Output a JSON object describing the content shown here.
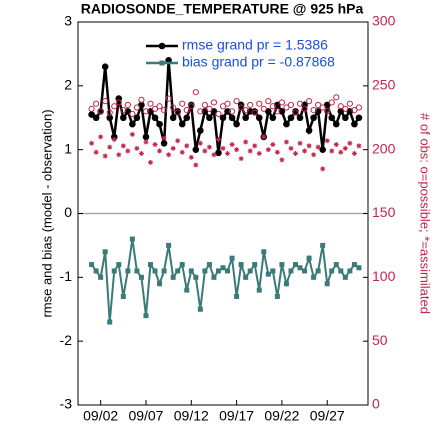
{
  "chart_data": {
    "type": "line",
    "title": "RADIOSONDE_TEMPERATURE @ 925 hPa",
    "y_label": "rmse and bias (model - observation)",
    "y2_label": "# of obs: o=possible; *=assimilated",
    "y2_color": "#c0284a",
    "legend_color": "#1a4fd8",
    "zero_line": true,
    "x": [
      0,
      0.5,
      1,
      1.5,
      2,
      2.5,
      3,
      3.5,
      4,
      4.5,
      5,
      5.5,
      6,
      6.5,
      7,
      7.5,
      8,
      8.5,
      9,
      9.5,
      10,
      10.5,
      11,
      11.5,
      12,
      12.5,
      13,
      13.5,
      14,
      14.5,
      15,
      15.5,
      16,
      16.5,
      17,
      17.5,
      18,
      18.5,
      19,
      19.5,
      20,
      20.5,
      21,
      21.5,
      22,
      22.5,
      23,
      23.5,
      24,
      24.5,
      25,
      25.5,
      26,
      26.5,
      27,
      27.5,
      28,
      28.5,
      29,
      29.5
    ],
    "xlim": [
      -1.5,
      30.5
    ],
    "xticks": [
      {
        "value": 1,
        "label": "09/02"
      },
      {
        "value": 6,
        "label": "09/07"
      },
      {
        "value": 11,
        "label": "09/12"
      },
      {
        "value": 16,
        "label": "09/17"
      },
      {
        "value": 21,
        "label": "09/22"
      },
      {
        "value": 26,
        "label": "09/27"
      }
    ],
    "ylim": [
      -3,
      3
    ],
    "yticks": [
      -3,
      -2,
      -1,
      0,
      1,
      2,
      3
    ],
    "y2lim": [
      0,
      300
    ],
    "y2ticks": [
      0,
      50,
      100,
      150,
      200,
      250,
      300
    ],
    "series": [
      {
        "name": "rmse grand pr = 1.5386",
        "color": "#000000",
        "marker": "circle",
        "values": [
          1.55,
          1.5,
          1.6,
          2.3,
          1.5,
          1.2,
          1.8,
          1.5,
          1.6,
          1.4,
          1.5,
          1.7,
          1.2,
          1.6,
          1.5,
          1.4,
          1.1,
          2.4,
          1.5,
          1.6,
          1.4,
          1.5,
          1.7,
          1.0,
          1.3,
          1.6,
          1.5,
          1.6,
          0.95,
          1.5,
          1.6,
          1.5,
          1.4,
          1.7,
          1.5,
          1.6,
          1.6,
          1.5,
          1.2,
          1.6,
          1.5,
          1.7,
          1.6,
          1.4,
          1.5,
          1.6,
          1.5,
          1.7,
          1.3,
          1.5,
          1.6,
          1.0,
          1.7,
          1.5,
          1.4,
          1.6,
          1.5,
          1.6,
          1.4,
          1.5
        ]
      },
      {
        "name": "bias grand pr = -0.87868",
        "color": "#3a7a78",
        "marker": "square",
        "values": [
          -0.8,
          -0.9,
          -1.0,
          -0.6,
          -1.7,
          -0.9,
          -0.8,
          -1.3,
          -0.9,
          -0.4,
          -0.9,
          -1.0,
          -1.6,
          -0.8,
          -0.9,
          -1.1,
          -0.9,
          -0.5,
          -1.0,
          -0.9,
          -0.8,
          -1.2,
          -0.9,
          -1.0,
          -1.5,
          -0.9,
          -0.8,
          -1.0,
          -0.9,
          -0.85,
          -0.9,
          -0.7,
          -1.3,
          -0.8,
          -1.0,
          -0.9,
          -0.8,
          -1.2,
          -0.6,
          -0.95,
          -0.9,
          -1.3,
          -0.8,
          -1.1,
          -0.9,
          -0.8,
          -0.85,
          -0.9,
          -0.7,
          -1.0,
          -0.9,
          -0.5,
          -1.1,
          -0.9,
          -0.8,
          -0.9,
          -1.0,
          -0.9,
          -0.8,
          -0.85
        ]
      },
      {
        "color": "#c0284a",
        "marker": "circle-open",
        "axis": "y2",
        "values": [
          232,
          236,
          230,
          238,
          229,
          234,
          237,
          231,
          235,
          228,
          233,
          239,
          230,
          236,
          232,
          234,
          231,
          240,
          233,
          229,
          236,
          231,
          234,
          245,
          230,
          235,
          232,
          237,
          228,
          234,
          236,
          230,
          238,
          233,
          231,
          235,
          229,
          236,
          232,
          238,
          234,
          230,
          237,
          233,
          235,
          229,
          236,
          232,
          238,
          231,
          235,
          233,
          230,
          237,
          241,
          234,
          232,
          236,
          231,
          233
        ]
      },
      {
        "color": "#c0284a",
        "marker": "asterisk",
        "axis": "y2",
        "values": [
          205,
          198,
          210,
          195,
          202,
          208,
          196,
          203,
          199,
          212,
          201,
          197,
          206,
          190,
          204,
          199,
          209,
          196,
          201,
          207,
          198,
          203,
          194,
          188,
          205,
          199,
          202,
          196,
          208,
          201,
          197,
          204,
          200,
          193,
          206,
          199,
          203,
          197,
          210,
          200,
          204,
          198,
          192,
          206,
          201,
          197,
          205,
          199,
          203,
          196,
          202,
          185,
          207,
          199,
          204,
          198,
          201,
          205,
          197,
          203
        ]
      }
    ]
  }
}
